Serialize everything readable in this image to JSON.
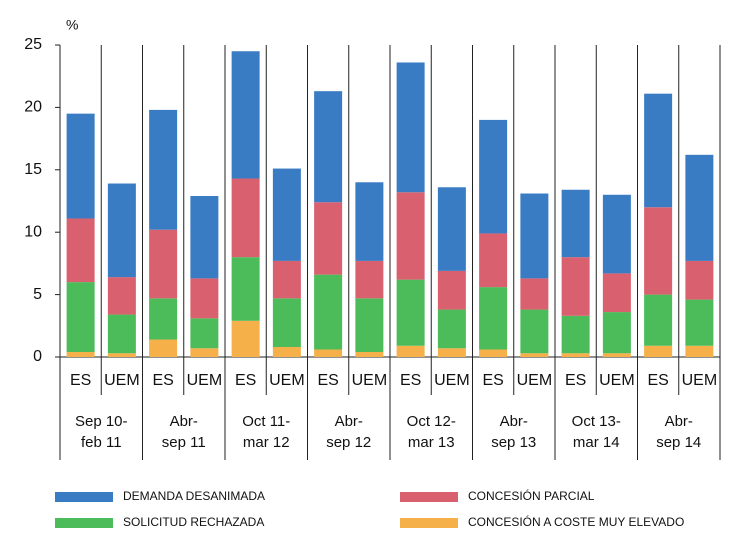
{
  "chart_data": {
    "type": "stacked_bar",
    "y_label": "%",
    "categories": [
      "ES",
      "UEM",
      "ES",
      "UEM",
      "ES",
      "UEM",
      "ES",
      "UEM",
      "ES",
      "UEM",
      "ES",
      "UEM",
      "ES",
      "UEM",
      "ES",
      "UEM"
    ],
    "group_labels": [
      [
        "Sep 10-",
        "feb 11"
      ],
      [
        "Abr-",
        "sep 11"
      ],
      [
        "Oct 11-",
        "mar 12"
      ],
      [
        "Abr-",
        "sep 12"
      ],
      [
        "Oct 12-",
        "mar 13"
      ],
      [
        "Abr-",
        "sep 13"
      ],
      [
        "Oct 13-",
        "mar 14"
      ],
      [
        "Abr-",
        "sep 14"
      ]
    ],
    "series": [
      {
        "name": "CONCESIÓN A COSTE MUY ELEVADO",
        "color": "#f5b04a",
        "values": [
          0.4,
          0.3,
          1.4,
          0.7,
          2.9,
          0.8,
          0.6,
          0.4,
          0.9,
          0.7,
          0.6,
          0.3,
          0.3,
          0.3,
          0.9,
          0.9
        ]
      },
      {
        "name": "SOLICITUD RECHAZADA",
        "color": "#4cbb5a",
        "values": [
          5.6,
          3.1,
          3.3,
          2.4,
          5.1,
          3.9,
          6.0,
          4.3,
          5.3,
          3.1,
          5.0,
          3.5,
          3.0,
          3.3,
          4.1,
          3.7
        ]
      },
      {
        "name": "CONCESIÓN PARCIAL",
        "color": "#d9606e",
        "values": [
          5.1,
          3.0,
          5.5,
          3.2,
          6.3,
          3.0,
          5.8,
          3.0,
          7.0,
          3.1,
          4.3,
          2.5,
          4.7,
          3.1,
          7.0,
          3.1
        ]
      },
      {
        "name": "DEMANDA DESANIMADA",
        "color": "#3a7cc4",
        "values": [
          8.4,
          7.5,
          9.6,
          6.6,
          10.2,
          7.4,
          8.9,
          6.3,
          10.4,
          6.7,
          9.1,
          6.8,
          5.4,
          6.3,
          9.1,
          8.5
        ]
      }
    ],
    "ylim": [
      0,
      25
    ],
    "yticks": [
      0,
      5,
      10,
      15,
      20,
      25
    ]
  }
}
